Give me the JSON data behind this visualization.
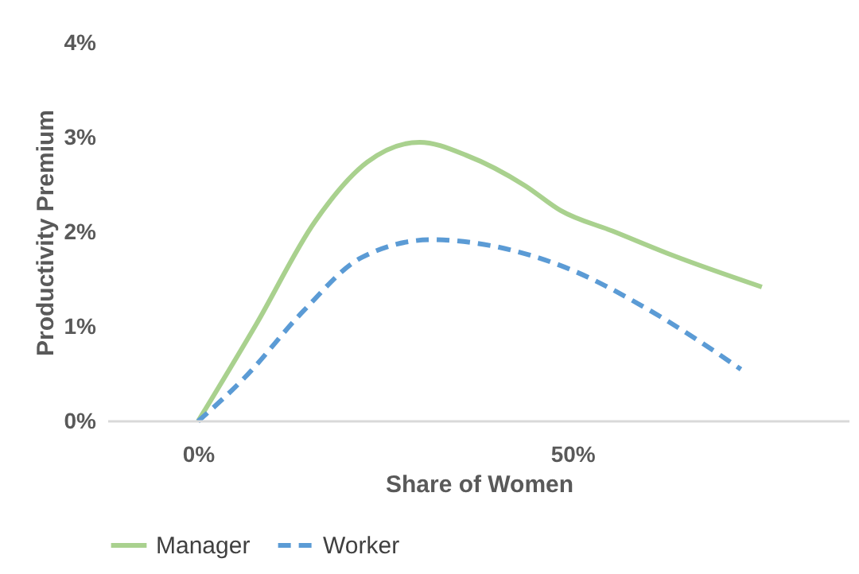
{
  "chart_data": {
    "type": "line",
    "xlabel": "Share of Women",
    "ylabel": "Productivity Premium",
    "xlim": [
      -12,
      87
    ],
    "ylim": [
      0,
      4
    ],
    "xticks": [
      {
        "value": 0,
        "label": "0%"
      },
      {
        "value": 50,
        "label": "50%"
      }
    ],
    "yticks": [
      {
        "value": 0,
        "label": "0%"
      },
      {
        "value": 1,
        "label": "1%"
      },
      {
        "value": 2,
        "label": "2%"
      },
      {
        "value": 3,
        "label": "3%"
      },
      {
        "value": 4,
        "label": "4%"
      }
    ],
    "grid": false,
    "legend": "bottom",
    "series": [
      {
        "name": "Manager",
        "color": "#a9d18e",
        "line_style": "solid",
        "x": [
          0,
          7.8,
          15.6,
          22.6,
          29.6,
          35.9,
          43.7,
          48.4,
          55.4,
          63.2,
          75.3
        ],
        "values": [
          0,
          1.03,
          2.11,
          2.74,
          2.95,
          2.81,
          2.49,
          2.23,
          2.01,
          1.76,
          1.42
        ]
      },
      {
        "name": "Worker",
        "color": "#5b9bd5",
        "line_style": "dashed",
        "x": [
          0,
          6.2,
          14,
          21.8,
          31.2,
          38.2,
          49.9,
          59.3,
          67.1,
          72.5
        ],
        "values": [
          0,
          0.46,
          1.16,
          1.73,
          1.92,
          1.87,
          1.6,
          1.22,
          0.84,
          0.55
        ]
      }
    ]
  }
}
